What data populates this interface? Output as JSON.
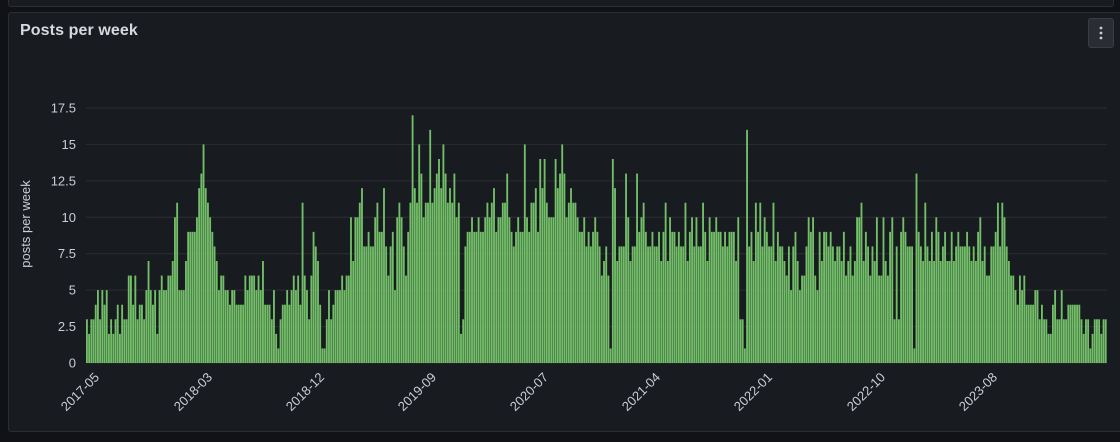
{
  "panel": {
    "title": "Posts per week"
  },
  "colors": {
    "bar_fill": "#73bf69",
    "bar_stroke": "#4d8a47",
    "grid": "#2c2e34",
    "background": "#181b1f"
  },
  "chart_data": {
    "type": "bar",
    "title": "Posts per week",
    "ylabel": "posts per week",
    "xlabel": "",
    "ylim": [
      0,
      17.5
    ],
    "y_ticks": [
      "0",
      "2.5",
      "5",
      "7.5",
      "10",
      "12.5",
      "15",
      "17.5"
    ],
    "x_ticks": [
      "2017-05",
      "2018-03",
      "2018-12",
      "2019-09",
      "2020-07",
      "2021-04",
      "2022-01",
      "2022-10",
      "2023-08"
    ],
    "grid": true,
    "legend": "none",
    "series": [
      {
        "values": [
          3,
          2,
          3,
          3,
          4,
          5,
          3,
          5,
          4,
          5,
          2,
          3,
          2,
          3,
          4,
          2,
          4,
          3,
          3,
          6,
          6,
          4,
          6,
          3,
          4,
          4,
          3,
          5,
          7,
          5,
          4,
          5,
          2,
          5,
          6,
          5,
          5,
          6,
          6,
          7,
          10,
          11,
          5,
          5,
          5,
          7,
          9,
          9,
          9,
          9,
          10,
          12,
          13,
          15,
          12,
          11,
          10,
          9,
          8,
          7,
          5,
          6,
          6,
          5,
          5,
          4,
          5,
          5,
          4,
          4,
          4,
          4,
          6,
          5,
          6,
          6,
          6,
          5,
          6,
          5,
          7,
          4,
          4,
          4,
          3,
          5,
          2,
          1,
          3,
          4,
          4,
          5,
          4,
          5,
          6,
          5,
          6,
          4,
          11,
          6,
          5,
          3,
          6,
          9,
          8,
          7,
          4,
          1,
          1,
          3,
          5,
          3,
          4,
          5,
          5,
          5,
          6,
          5,
          6,
          6,
          10,
          7,
          10,
          10,
          11,
          12,
          8,
          8,
          9,
          8,
          8,
          10,
          11,
          9,
          9,
          12,
          8,
          6,
          8,
          9,
          5,
          10,
          11,
          10,
          8,
          6,
          9,
          11,
          17,
          12,
          11,
          15,
          13,
          10,
          11,
          11,
          16,
          11,
          12,
          13,
          14,
          12,
          15,
          13,
          11,
          12,
          11,
          13,
          10,
          11,
          2,
          3,
          8,
          9,
          9,
          10,
          9,
          9,
          10,
          9,
          9,
          10,
          11,
          10,
          11,
          12,
          9,
          10,
          10,
          11,
          11,
          13,
          10,
          9,
          8,
          9,
          10,
          9,
          9,
          15,
          10,
          9,
          11,
          11,
          12,
          9,
          14,
          12,
          14,
          11,
          10,
          10,
          10,
          14,
          12,
          13,
          15,
          13,
          10,
          11,
          12,
          11,
          11,
          10,
          9,
          9,
          10,
          8,
          9,
          8,
          9,
          10,
          9,
          8,
          6,
          7,
          8,
          6,
          1,
          14,
          12,
          7,
          8,
          8,
          8,
          13,
          10,
          7,
          8,
          8,
          13,
          9,
          10,
          11,
          9,
          8,
          8,
          9,
          8,
          8,
          9,
          7,
          9,
          11,
          7,
          10,
          9,
          9,
          8,
          9,
          8,
          8,
          11,
          7,
          9,
          10,
          8,
          10,
          8,
          8,
          11,
          9,
          7,
          10,
          9,
          9,
          10,
          9,
          9,
          8,
          9,
          8,
          9,
          9,
          9,
          7,
          10,
          3,
          3,
          1,
          16,
          8,
          9,
          7,
          11,
          9,
          11,
          8,
          10,
          9,
          8,
          8,
          11,
          7,
          9,
          8,
          8,
          7,
          6,
          8,
          5,
          8,
          9,
          7,
          5,
          6,
          6,
          8,
          10,
          9,
          10,
          6,
          5,
          9,
          7,
          9,
          9,
          8,
          9,
          8,
          7,
          8,
          8,
          7,
          9,
          6,
          7,
          8,
          6,
          7,
          10,
          10,
          11,
          7,
          9,
          8,
          6,
          8,
          7,
          10,
          6,
          6,
          10,
          7,
          6,
          9,
          10,
          3,
          8,
          3,
          9,
          10,
          9,
          8,
          8,
          8,
          1,
          13,
          9,
          8,
          7,
          11,
          8,
          7,
          9,
          7,
          10,
          9,
          7,
          8,
          9,
          7,
          7,
          9,
          7,
          8,
          9,
          8,
          8,
          8,
          9,
          8,
          7,
          8,
          7,
          9,
          10,
          7,
          8,
          6,
          6,
          8,
          8,
          9,
          11,
          8,
          11,
          10,
          8,
          7,
          6,
          6,
          5,
          4,
          6,
          5,
          6,
          4,
          4,
          4,
          4,
          5,
          5,
          3,
          4,
          3,
          3,
          2,
          2,
          4,
          5,
          3,
          3,
          5,
          3,
          3,
          4,
          4,
          4,
          4,
          4,
          4,
          3,
          2,
          3,
          3,
          1,
          2,
          3,
          3,
          3,
          2,
          3,
          3
        ]
      }
    ]
  }
}
